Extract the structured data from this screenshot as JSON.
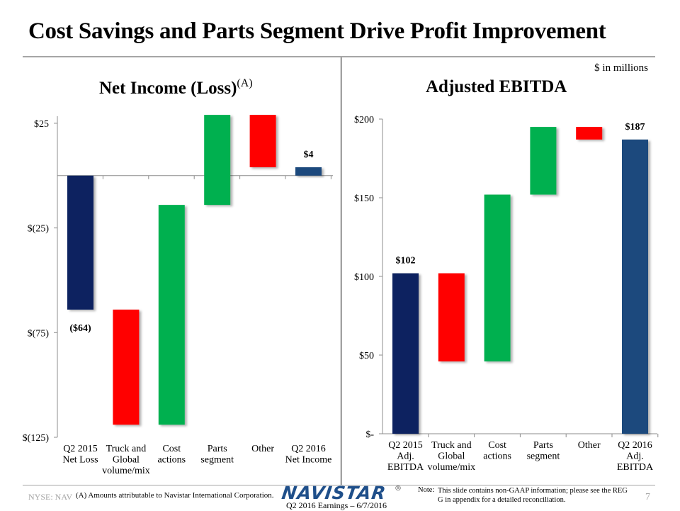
{
  "slide": {
    "title": "Cost Savings and Parts Segment Drive Profit Improvement",
    "units": "$ in millions",
    "footer": {
      "ticker": "NYSE: NAV",
      "note_a": "(A)  Amounts attributable to Navistar International Corporation.",
      "logo": "NAVISTAR",
      "logo_mark": "®",
      "date": "Q2 2016 Earnings – 6/7/2016",
      "note_label": "Note:",
      "note_text": "This slide contains non-GAAP information; please see the REG G in appendix for a detailed reconciliation.",
      "page_number": "7"
    }
  },
  "chart_data": [
    {
      "type": "bar",
      "subtype": "waterfall",
      "title": "Net Income (Loss)",
      "title_superscript": "(A)",
      "xlabel": "",
      "ylabel": "",
      "ylim": [
        -125,
        25
      ],
      "yticks": [
        25,
        -25,
        -75,
        -125
      ],
      "ytick_labels": [
        "$25",
        "$(25)",
        "$(75)",
        "$(125)"
      ],
      "categories": [
        [
          "Q2 2015",
          "Net Loss"
        ],
        [
          "Truck and",
          "Global",
          "volume/mix"
        ],
        [
          "Cost",
          "actions"
        ],
        [
          "Parts",
          "segment"
        ],
        [
          "Other"
        ],
        [
          "Q2 2016",
          "Net Income"
        ]
      ],
      "bars": [
        {
          "start": 0,
          "end": -64,
          "kind": "total",
          "color": "#0a2260",
          "label": "($64)",
          "label_pos": "below"
        },
        {
          "start": -64,
          "end": -119,
          "kind": "decrease",
          "color": "#ff0000",
          "label": ""
        },
        {
          "start": -119,
          "end": -14,
          "kind": "increase",
          "color": "#00b050",
          "label": ""
        },
        {
          "start": -14,
          "end": 29,
          "kind": "increase",
          "color": "#00b050",
          "label": ""
        },
        {
          "start": 29,
          "end": 4,
          "kind": "decrease",
          "color": "#ff0000",
          "label": ""
        },
        {
          "start": 0,
          "end": 4,
          "kind": "total",
          "color": "#1f497d",
          "label": "$4",
          "label_pos": "above"
        }
      ],
      "grid": false
    },
    {
      "type": "bar",
      "subtype": "waterfall",
      "title": "Adjusted EBITDA",
      "xlabel": "",
      "ylabel": "",
      "ylim": [
        0,
        200
      ],
      "yticks": [
        200,
        150,
        100,
        50,
        0
      ],
      "ytick_labels": [
        "$200",
        "$150",
        "$100",
        "$50",
        "$-"
      ],
      "categories": [
        [
          "Q2 2015",
          "Adj.",
          "EBITDA"
        ],
        [
          "Truck and",
          "Global",
          "volume/mix"
        ],
        [
          "Cost",
          "actions"
        ],
        [
          "Parts",
          "segment"
        ],
        [
          "Other"
        ],
        [
          "Q2 2016",
          "Adj.",
          "EBITDA"
        ]
      ],
      "bars": [
        {
          "start": 0,
          "end": 102,
          "kind": "total",
          "color": "#0a2260",
          "label": "$102",
          "label_pos": "above"
        },
        {
          "start": 102,
          "end": 46,
          "kind": "decrease",
          "color": "#ff0000",
          "label": ""
        },
        {
          "start": 46,
          "end": 152,
          "kind": "increase",
          "color": "#00b050",
          "label": ""
        },
        {
          "start": 152,
          "end": 195,
          "kind": "increase",
          "color": "#00b050",
          "label": ""
        },
        {
          "start": 195,
          "end": 187,
          "kind": "decrease",
          "color": "#ff0000",
          "label": ""
        },
        {
          "start": 0,
          "end": 187,
          "kind": "total",
          "color": "#1f497d",
          "label": "$187",
          "label_pos": "above"
        }
      ],
      "grid": false
    }
  ]
}
